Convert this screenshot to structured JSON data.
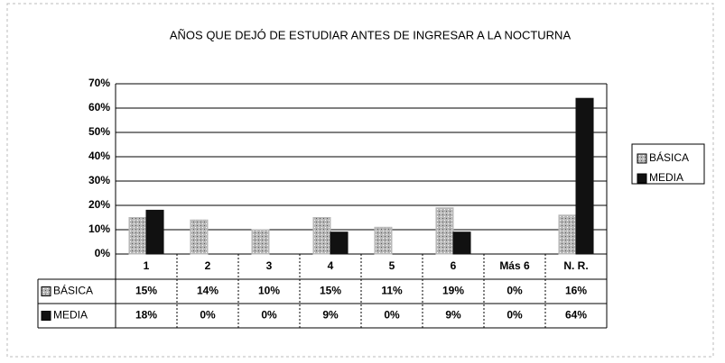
{
  "chart_data": {
    "type": "bar",
    "title": "AÑOS QUE DEJÓ DE ESTUDIAR ANTES DE INGRESAR A LA NOCTURNA",
    "categories": [
      "1",
      "2",
      "3",
      "4",
      "5",
      "6",
      "Más 6",
      "N. R."
    ],
    "series": [
      {
        "name": "BÁSICA",
        "color": "#b8b8b8",
        "values": [
          15,
          14,
          10,
          15,
          11,
          19,
          0,
          16
        ],
        "value_labels": [
          "15%",
          "14%",
          "10%",
          "15%",
          "11%",
          "19%",
          "0%",
          "16%"
        ]
      },
      {
        "name": "MEDIA",
        "color": "#111111",
        "values": [
          18,
          0,
          0,
          9,
          0,
          9,
          0,
          64
        ],
        "value_labels": [
          "18%",
          "0%",
          "0%",
          "9%",
          "0%",
          "9%",
          "0%",
          "64%"
        ]
      }
    ],
    "ylim": [
      0,
      70
    ],
    "yticks": [
      {
        "value": 0,
        "label": "0%"
      },
      {
        "value": 10,
        "label": "10%"
      },
      {
        "value": 20,
        "label": "20%"
      },
      {
        "value": 30,
        "label": "30%"
      },
      {
        "value": 40,
        "label": "40%"
      },
      {
        "value": 50,
        "label": "50%"
      },
      {
        "value": 60,
        "label": "60%"
      },
      {
        "value": 70,
        "label": "70%"
      }
    ],
    "grid": true,
    "legend": "right"
  }
}
